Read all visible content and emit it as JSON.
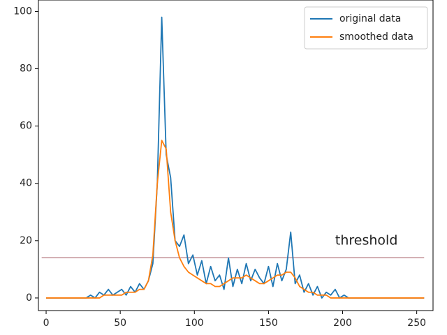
{
  "chart_data": {
    "type": "line",
    "x": [
      0,
      3,
      6,
      9,
      12,
      15,
      18,
      21,
      24,
      27,
      30,
      33,
      36,
      39,
      42,
      45,
      48,
      51,
      54,
      57,
      60,
      63,
      66,
      69,
      72,
      75,
      78,
      81,
      84,
      87,
      90,
      93,
      96,
      99,
      102,
      105,
      108,
      111,
      114,
      117,
      120,
      123,
      126,
      129,
      132,
      135,
      138,
      141,
      144,
      147,
      150,
      153,
      156,
      159,
      162,
      165,
      168,
      171,
      174,
      177,
      180,
      183,
      186,
      189,
      192,
      195,
      198,
      201,
      204,
      207,
      210,
      213,
      216,
      219,
      222,
      225,
      228,
      231,
      234,
      237,
      240,
      243,
      246,
      249,
      252,
      255
    ],
    "series": [
      {
        "name": "original data",
        "color": "#1f77b4",
        "values": [
          0,
          0,
          0,
          0,
          0,
          0,
          0,
          0,
          0,
          0,
          1,
          0,
          2,
          1,
          3,
          1,
          2,
          3,
          1,
          4,
          2,
          5,
          3,
          6,
          12,
          40,
          98,
          50,
          42,
          20,
          18,
          22,
          12,
          15,
          8,
          13,
          5,
          11,
          6,
          8,
          3,
          14,
          4,
          10,
          5,
          12,
          6,
          10,
          7,
          5,
          11,
          4,
          12,
          6,
          10,
          23,
          5,
          8,
          2,
          5,
          1,
          4,
          0,
          2,
          1,
          3,
          0,
          1,
          0,
          0,
          0,
          0,
          0,
          0,
          0,
          0,
          0,
          0,
          0,
          0,
          0,
          0,
          0,
          0,
          0,
          0
        ]
      },
      {
        "name": "smoothed data",
        "color": "#ff7f0e",
        "values": [
          0,
          0,
          0,
          0,
          0,
          0,
          0,
          0,
          0,
          0,
          0,
          0,
          0,
          1,
          1,
          1,
          1,
          1,
          2,
          2,
          2,
          3,
          3,
          6,
          15,
          40,
          55,
          52,
          30,
          20,
          14,
          11,
          9,
          8,
          7,
          6,
          5,
          5,
          4,
          4,
          5,
          6,
          7,
          7,
          7,
          8,
          7,
          6,
          5,
          5,
          6,
          7,
          8,
          8,
          9,
          9,
          7,
          4,
          3,
          2,
          2,
          1,
          1,
          1,
          0,
          0,
          0,
          0,
          0,
          0,
          0,
          0,
          0,
          0,
          0,
          0,
          0,
          0,
          0,
          0,
          0,
          0,
          0,
          0,
          0,
          0
        ]
      }
    ],
    "threshold": 14,
    "threshold_color": "#a0525a",
    "annotation": "threshold",
    "xlim": [
      -5.2,
      261
    ],
    "ylim": [
      -4.4,
      104
    ],
    "xticks": [
      0,
      50,
      100,
      150,
      200,
      250
    ],
    "yticks": [
      0,
      20,
      40,
      60,
      80,
      100
    ],
    "legend": "upper right"
  }
}
